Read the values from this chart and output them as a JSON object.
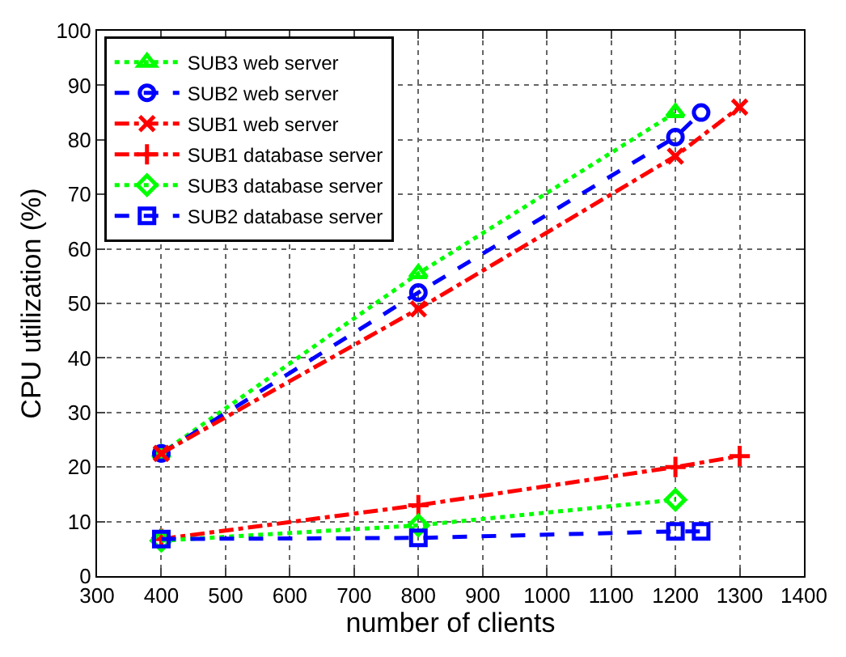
{
  "chart_data": {
    "type": "line",
    "xlabel": "number of clients",
    "ylabel": "CPU utilization (%)",
    "xlim": [
      300,
      1400
    ],
    "xticks": [
      300,
      400,
      500,
      600,
      700,
      800,
      900,
      1000,
      1100,
      1200,
      1300,
      1400
    ],
    "ylim": [
      0,
      100
    ],
    "yticks": [
      0,
      10,
      20,
      30,
      40,
      50,
      60,
      70,
      80,
      90,
      100
    ],
    "grid": true,
    "legend": "top left",
    "series": [
      {
        "name": "SUB3 web server",
        "color": "#00ff00",
        "marker": "triangle",
        "line_style": "dotted",
        "x": [
          400,
          800,
          1200
        ],
        "values": [
          22.5,
          55.5,
          85
        ]
      },
      {
        "name": "SUB2 web server",
        "color": "#0000ff",
        "marker": "circle",
        "line_style": "dashed",
        "x": [
          400,
          800,
          1200,
          1240
        ],
        "values": [
          22.5,
          52,
          80.5,
          85
        ]
      },
      {
        "name": "SUB1 web server",
        "color": "#ff0000",
        "marker": "cross",
        "line_style": "dashdot",
        "x": [
          400,
          800,
          1200,
          1300
        ],
        "values": [
          22.5,
          49,
          77,
          86
        ]
      },
      {
        "name": "SUB1 database server",
        "color": "#ff0000",
        "marker": "plus",
        "line_style": "dashdot",
        "x": [
          400,
          800,
          1200,
          1300
        ],
        "values": [
          6.8,
          13,
          20,
          22
        ]
      },
      {
        "name": "SUB3 database server",
        "color": "#00ff00",
        "marker": "diamond",
        "line_style": "dotted",
        "x": [
          400,
          800,
          1200
        ],
        "values": [
          6.5,
          9.3,
          14
        ]
      },
      {
        "name": "SUB2 database server",
        "color": "#0000ff",
        "marker": "square",
        "line_style": "dashed",
        "x": [
          400,
          800,
          1200,
          1240
        ],
        "values": [
          6.8,
          7,
          8.2,
          8.2
        ]
      }
    ]
  }
}
